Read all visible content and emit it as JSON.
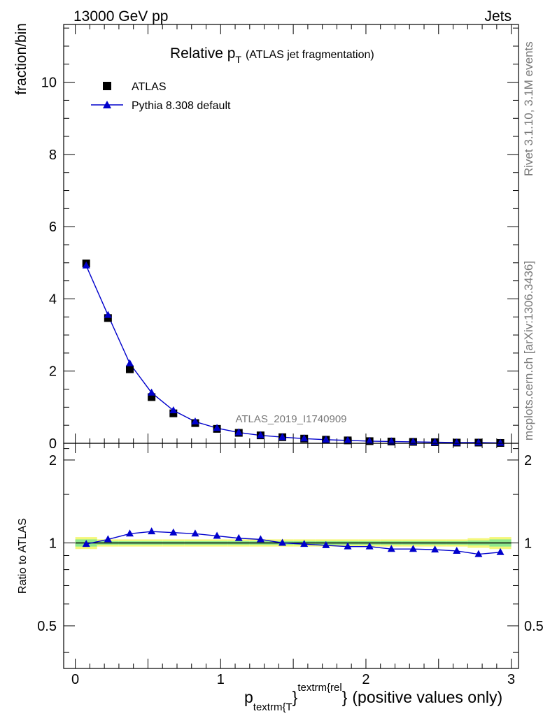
{
  "header": {
    "left": "13000 GeV pp",
    "right": "Jets"
  },
  "side_text": {
    "rivet": "Rivet 3.1.10,  3.1M events",
    "mcplots": "mcplots.cern.ch [arXiv:1306.3436]"
  },
  "chart_data": [
    {
      "type": "scatter",
      "title_main": "Relative p",
      "title_sub": "T",
      "title_rest": "(ATLAS jet fragmentation)",
      "watermark": "ATLAS_2019_I1740909",
      "ylabel": "fraction/bin",
      "xlim": [
        -0.08,
        3.05
      ],
      "ylim": [
        0,
        11.6
      ],
      "yticks": [
        0,
        2,
        4,
        6,
        8,
        10
      ],
      "ytick_labels": [
        "0",
        "2",
        "4",
        "6",
        "8",
        "10"
      ],
      "legend_position": "top-left",
      "x": [
        0.075,
        0.225,
        0.375,
        0.525,
        0.675,
        0.825,
        0.975,
        1.125,
        1.275,
        1.425,
        1.575,
        1.725,
        1.875,
        2.025,
        2.175,
        2.325,
        2.475,
        2.625,
        2.775,
        2.925
      ],
      "series": [
        {
          "name": "ATLAS",
          "color": "#000000",
          "marker": "square",
          "values": [
            4.98,
            3.47,
            2.05,
            1.28,
            0.83,
            0.56,
            0.4,
            0.29,
            0.22,
            0.17,
            0.13,
            0.1,
            0.08,
            0.06,
            0.05,
            0.04,
            0.03,
            0.02,
            0.02,
            0.01
          ]
        },
        {
          "name": "Pythia 8.308 default",
          "color": "#0000cc",
          "marker": "triangle",
          "values": [
            4.92,
            3.55,
            2.21,
            1.4,
            0.91,
            0.6,
            0.42,
            0.3,
            0.22,
            0.17,
            0.13,
            0.1,
            0.08,
            0.06,
            0.05,
            0.04,
            0.03,
            0.02,
            0.02,
            0.01
          ]
        }
      ]
    },
    {
      "type": "line",
      "ylabel": "Ratio to ATLAS",
      "xlabel_main": "p",
      "xlabel_sub": "textrm{T",
      "xlabel_sup": "textrm{rel",
      "xlabel_brace1": "}",
      "xlabel_brace2": "}",
      "xlabel_rest": "(positive values only)",
      "xlim": [
        -0.08,
        3.05
      ],
      "ylim": [
        0.35,
        2.3
      ],
      "xticks": [
        0,
        1,
        2,
        3
      ],
      "xtick_labels": [
        "0",
        "1",
        "2",
        "3"
      ],
      "yticks": [
        0.5,
        1,
        2
      ],
      "ytick_labels": [
        "0.5",
        "1",
        "2"
      ],
      "band_colors": {
        "outer": "#f4f77a",
        "inner": "#8de88d"
      },
      "x": [
        0.075,
        0.225,
        0.375,
        0.525,
        0.675,
        0.825,
        0.975,
        1.125,
        1.275,
        1.425,
        1.575,
        1.725,
        1.875,
        2.025,
        2.175,
        2.325,
        2.475,
        2.625,
        2.775,
        2.925
      ],
      "band_outer": [
        0.05,
        0.03,
        0.03,
        0.03,
        0.03,
        0.03,
        0.03,
        0.03,
        0.03,
        0.03,
        0.03,
        0.03,
        0.03,
        0.03,
        0.03,
        0.03,
        0.03,
        0.03,
        0.04,
        0.05
      ],
      "band_inner": [
        0.03,
        0.015,
        0.015,
        0.015,
        0.015,
        0.015,
        0.015,
        0.015,
        0.015,
        0.015,
        0.015,
        0.015,
        0.015,
        0.015,
        0.015,
        0.015,
        0.015,
        0.015,
        0.02,
        0.03
      ],
      "series": [
        {
          "name": "Pythia 8.308 default",
          "color": "#0000cc",
          "values": [
            0.99,
            1.03,
            1.08,
            1.1,
            1.09,
            1.08,
            1.06,
            1.04,
            1.03,
            1.0,
            0.99,
            0.98,
            0.97,
            0.97,
            0.95,
            0.95,
            0.945,
            0.935,
            0.91,
            0.925
          ]
        }
      ]
    }
  ]
}
